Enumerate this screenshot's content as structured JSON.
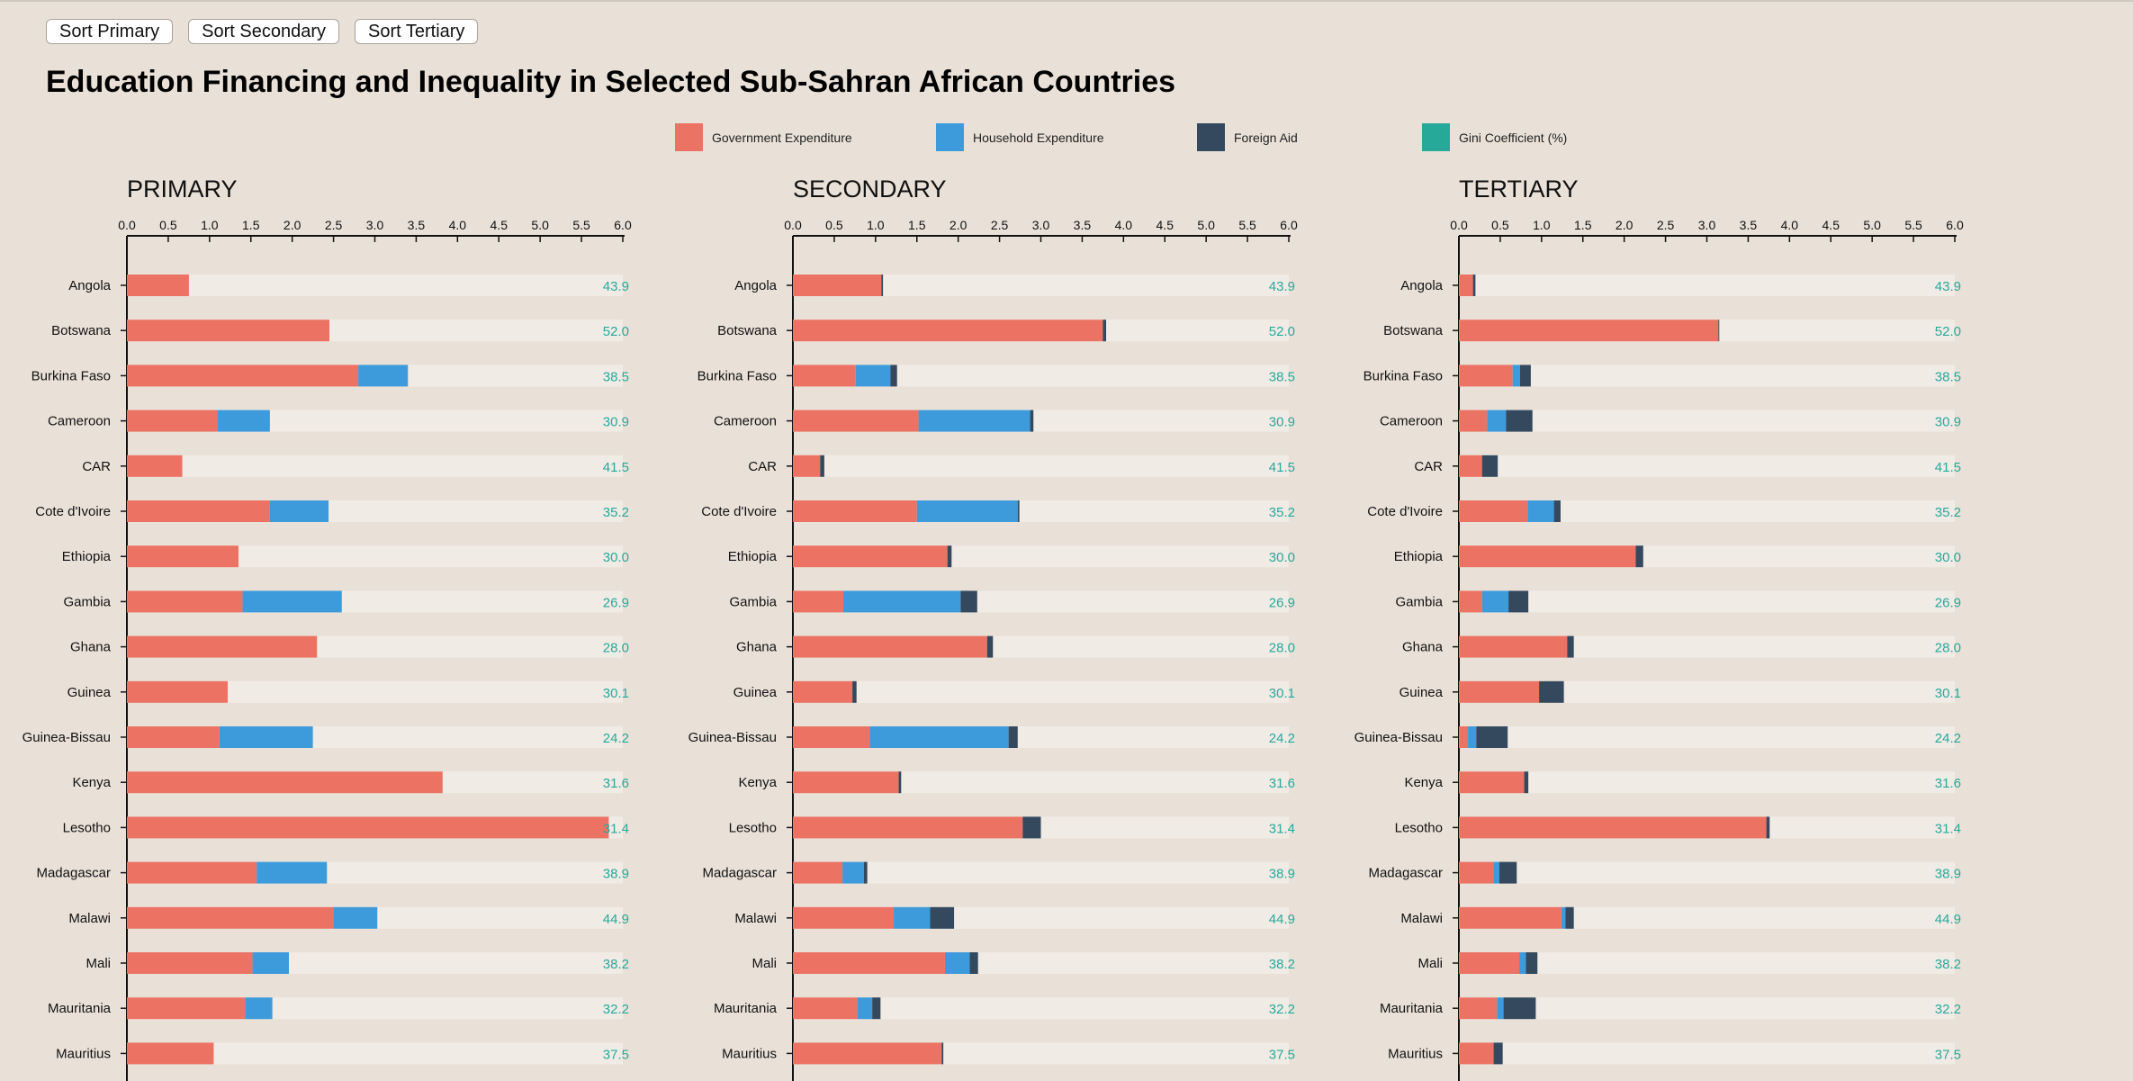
{
  "buttons": {
    "sort_primary": "Sort Primary",
    "sort_secondary": "Sort Secondary",
    "sort_tertiary": "Sort Tertiary"
  },
  "title": "Education Financing and Inequality in Selected Sub-Sahran African Countries",
  "legend": [
    {
      "label": "Government Expenditure",
      "color": "#ec7263"
    },
    {
      "label": "Household Expenditure",
      "color": "#3d9bdc"
    },
    {
      "label": "Foreign Aid",
      "color": "#34495e"
    },
    {
      "label": "Gini Coefficient (%)",
      "color": "#27a99a"
    }
  ],
  "colors": {
    "government": "#ec7263",
    "household": "#3d9bdc",
    "foreign_aid": "#34495e",
    "gini": "#27a99a",
    "track": "#f1ebe6",
    "background": "#e9e1d8"
  },
  "chart_data": [
    {
      "type": "bar",
      "stacked": true,
      "orientation": "horizontal",
      "title": "PRIMARY",
      "xlim": [
        0,
        6
      ],
      "ticks": [
        "0.0",
        "0.5",
        "1.0",
        "1.5",
        "2.0",
        "2.5",
        "3.0",
        "3.5",
        "4.0",
        "4.5",
        "5.0",
        "5.5",
        "6.0"
      ],
      "categories": [
        "Angola",
        "Botswana",
        "Burkina Faso",
        "Cameroon",
        "CAR",
        "Cote d'Ivoire",
        "Ethiopia",
        "Gambia",
        "Ghana",
        "Guinea",
        "Guinea-Bissau",
        "Kenya",
        "Lesotho",
        "Madagascar",
        "Malawi",
        "Mali",
        "Mauritania",
        "Mauritius"
      ],
      "series": [
        {
          "name": "Government Expenditure",
          "values": [
            0.75,
            2.45,
            2.8,
            1.1,
            0.67,
            1.73,
            1.35,
            1.4,
            2.3,
            1.22,
            1.12,
            3.82,
            5.83,
            1.57,
            2.5,
            1.52,
            1.43,
            1.05
          ]
        },
        {
          "name": "Household Expenditure",
          "values": [
            0,
            0,
            0.6,
            0.63,
            0,
            0.71,
            0,
            1.2,
            0,
            0,
            1.13,
            0,
            0,
            0.85,
            0.53,
            0.44,
            0.33,
            0
          ]
        },
        {
          "name": "Foreign Aid",
          "values": [
            0,
            0,
            0,
            0,
            0,
            0,
            0,
            0,
            0,
            0,
            0,
            0,
            0,
            0,
            0,
            0,
            0,
            0
          ]
        }
      ],
      "gini": [
        "43.9",
        "52.0",
        "38.5",
        "30.9",
        "41.5",
        "35.2",
        "30.0",
        "26.9",
        "28.0",
        "30.1",
        "24.2",
        "31.6",
        "31.4",
        "38.9",
        "44.9",
        "38.2",
        "32.2",
        "37.5"
      ]
    },
    {
      "type": "bar",
      "stacked": true,
      "orientation": "horizontal",
      "title": "SECONDARY",
      "xlim": [
        0,
        6
      ],
      "ticks": [
        "0.0",
        "0.5",
        "1.0",
        "1.5",
        "2.0",
        "2.5",
        "3.0",
        "3.5",
        "4.0",
        "4.5",
        "5.0",
        "5.5",
        "6.0"
      ],
      "categories": [
        "Angola",
        "Botswana",
        "Burkina Faso",
        "Cameroon",
        "CAR",
        "Cote d'Ivoire",
        "Ethiopia",
        "Gambia",
        "Ghana",
        "Guinea",
        "Guinea-Bissau",
        "Kenya",
        "Lesotho",
        "Madagascar",
        "Malawi",
        "Mali",
        "Mauritania",
        "Mauritius"
      ],
      "series": [
        {
          "name": "Government Expenditure",
          "values": [
            1.07,
            3.75,
            0.76,
            1.52,
            0.33,
            1.5,
            1.87,
            0.61,
            2.35,
            0.72,
            0.93,
            1.28,
            2.78,
            0.6,
            1.22,
            1.84,
            0.78,
            1.8
          ]
        },
        {
          "name": "Household Expenditure",
          "values": [
            0,
            0,
            0.42,
            1.35,
            0,
            1.22,
            0,
            1.42,
            0,
            0,
            1.68,
            0,
            0,
            0.26,
            0.44,
            0.3,
            0.18,
            0
          ]
        },
        {
          "name": "Foreign Aid",
          "values": [
            0.02,
            0.04,
            0.08,
            0.04,
            0.05,
            0.02,
            0.05,
            0.2,
            0.07,
            0.05,
            0.11,
            0.03,
            0.22,
            0.04,
            0.29,
            0.1,
            0.1,
            0.02
          ]
        }
      ],
      "gini": [
        "43.9",
        "52.0",
        "38.5",
        "30.9",
        "41.5",
        "35.2",
        "30.0",
        "26.9",
        "28.0",
        "30.1",
        "24.2",
        "31.6",
        "31.4",
        "38.9",
        "44.9",
        "38.2",
        "32.2",
        "37.5"
      ]
    },
    {
      "type": "bar",
      "stacked": true,
      "orientation": "horizontal",
      "title": "TERTIARY",
      "xlim": [
        0,
        6
      ],
      "ticks": [
        "0.0",
        "0.5",
        "1.0",
        "1.5",
        "2.0",
        "2.5",
        "3.0",
        "3.5",
        "4.0",
        "4.5",
        "5.0",
        "5.5",
        "6.0"
      ],
      "categories": [
        "Angola",
        "Botswana",
        "Burkina Faso",
        "Cameroon",
        "CAR",
        "Cote d'Ivoire",
        "Ethiopia",
        "Gambia",
        "Ghana",
        "Guinea",
        "Guinea-Bissau",
        "Kenya",
        "Lesotho",
        "Madagascar",
        "Malawi",
        "Mali",
        "Mauritania",
        "Mauritius"
      ],
      "series": [
        {
          "name": "Government Expenditure",
          "values": [
            0.17,
            3.14,
            0.65,
            0.34,
            0.28,
            0.83,
            2.14,
            0.28,
            1.31,
            0.97,
            0.11,
            0.79,
            3.72,
            0.42,
            1.24,
            0.73,
            0.46,
            0.42
          ]
        },
        {
          "name": "Household Expenditure",
          "values": [
            0,
            0,
            0.09,
            0.23,
            0,
            0.32,
            0,
            0.32,
            0,
            0,
            0.1,
            0,
            0,
            0.07,
            0.05,
            0.08,
            0.08,
            0
          ]
        },
        {
          "name": "Foreign Aid",
          "values": [
            0.03,
            0.01,
            0.13,
            0.32,
            0.19,
            0.08,
            0.09,
            0.24,
            0.08,
            0.3,
            0.38,
            0.05,
            0.04,
            0.21,
            0.1,
            0.14,
            0.39,
            0.11
          ]
        }
      ],
      "gini": [
        "43.9",
        "52.0",
        "38.5",
        "30.9",
        "41.5",
        "35.2",
        "30.0",
        "26.9",
        "28.0",
        "30.1",
        "24.2",
        "31.6",
        "31.4",
        "38.9",
        "44.9",
        "38.2",
        "32.2",
        "37.5"
      ]
    }
  ]
}
